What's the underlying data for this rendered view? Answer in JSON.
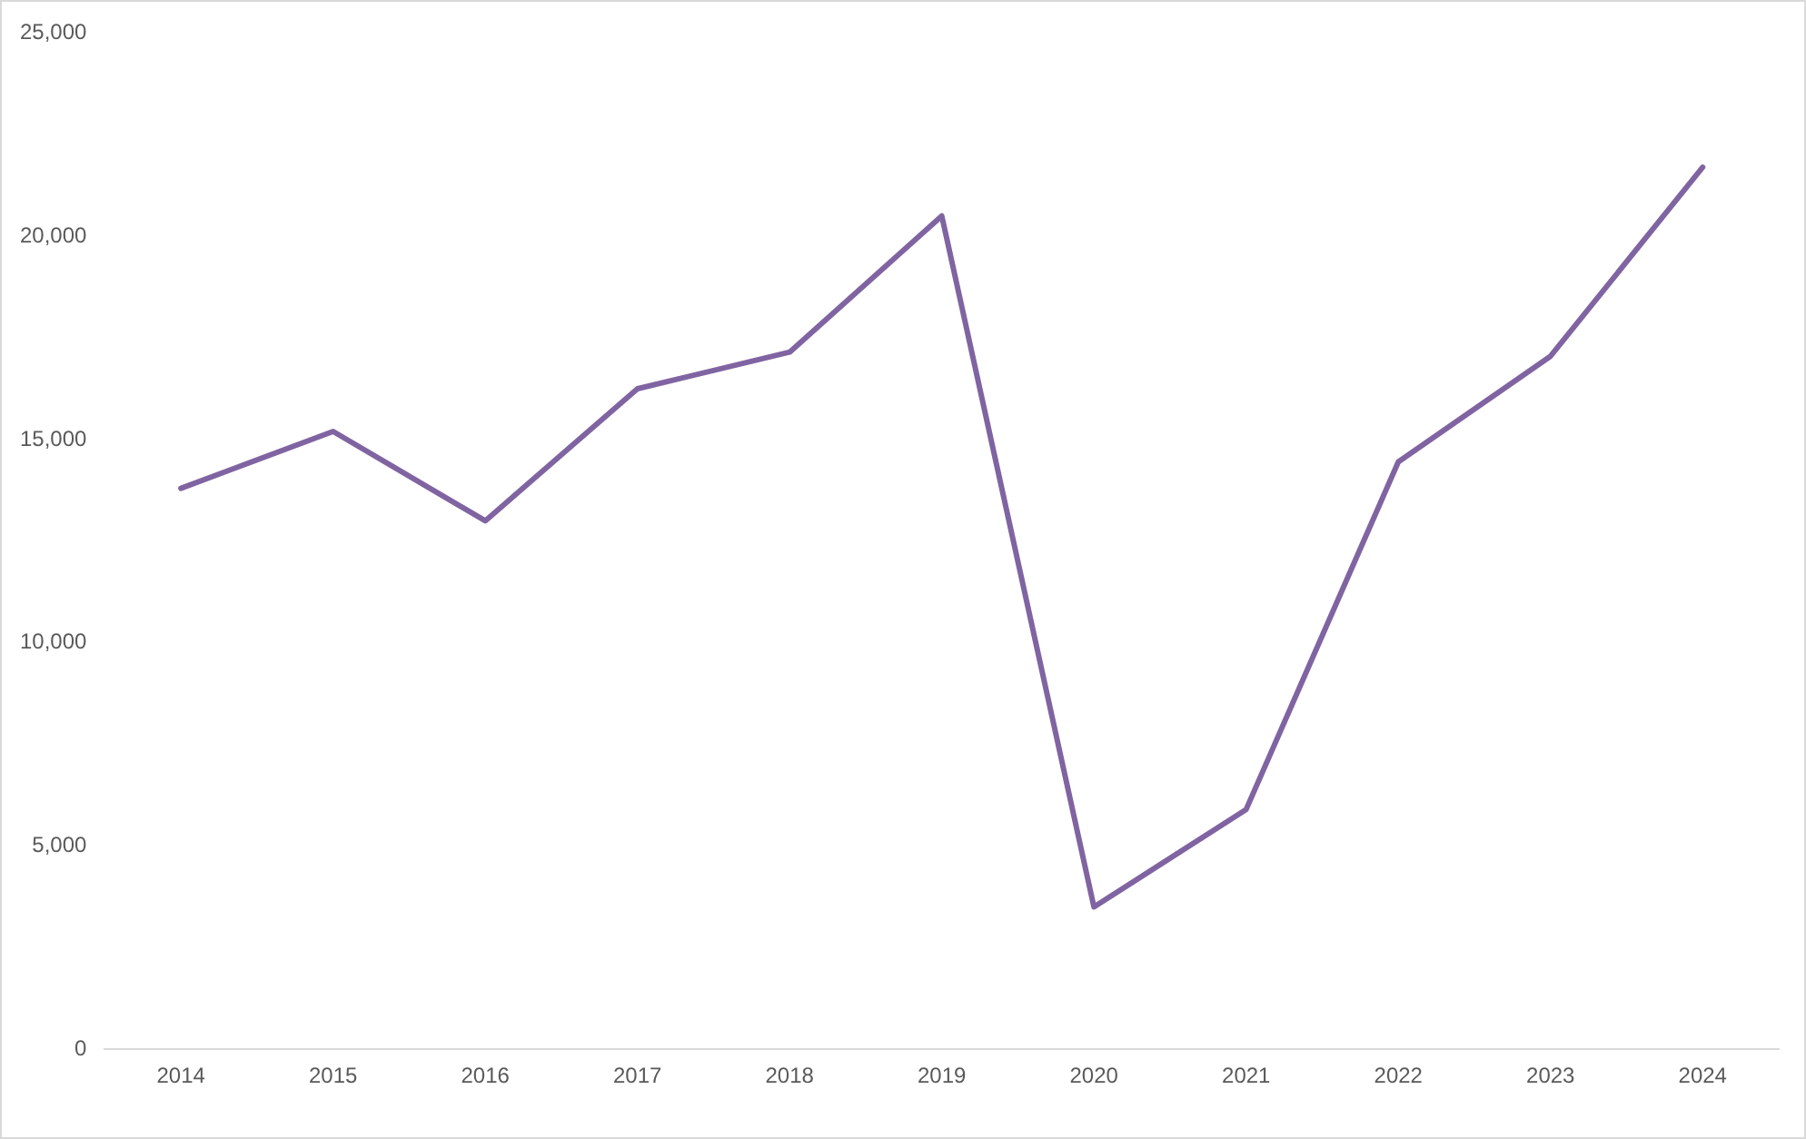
{
  "chart_data": {
    "type": "line",
    "categories": [
      "2014",
      "2015",
      "2016",
      "2017",
      "2018",
      "2019",
      "2020",
      "2021",
      "2022",
      "2023",
      "2024"
    ],
    "series": [
      {
        "color": "#8064a2",
        "values": [
          13800,
          15200,
          13000,
          16250,
          17150,
          20500,
          3500,
          5900,
          14450,
          17050,
          21700
        ]
      }
    ],
    "ylim": [
      0,
      25000
    ],
    "yticks": [
      {
        "value": 0,
        "label": "0"
      },
      {
        "value": 5000,
        "label": "5,000"
      },
      {
        "value": 10000,
        "label": "10,000"
      },
      {
        "value": 15000,
        "label": "15,000"
      },
      {
        "value": 20000,
        "label": "20,000"
      },
      {
        "value": 25000,
        "label": "25,000"
      }
    ],
    "grid": false,
    "legend": false,
    "marker": "none",
    "line_style": "solid"
  }
}
